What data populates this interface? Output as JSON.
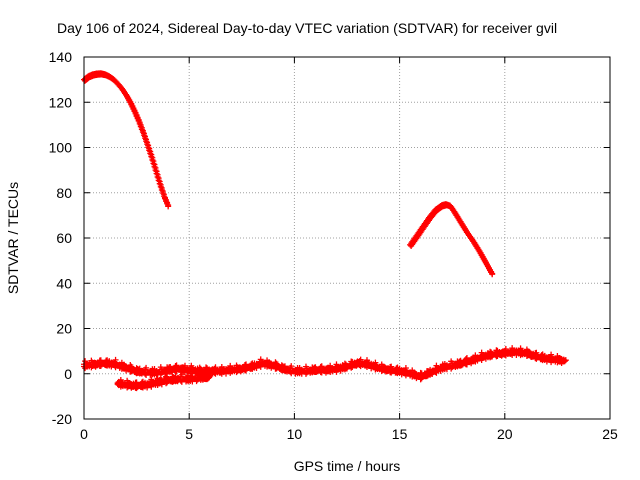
{
  "chart_data": {
    "type": "scatter",
    "title": "Day 106 of 2024, Sidereal Day-to-day VTEC variation (SDTVAR) for receiver gvil",
    "xlabel": "GPS time / hours",
    "ylabel": "SDTVAR / TECUs",
    "xlim": [
      0,
      25
    ],
    "ylim": [
      -20,
      140
    ],
    "xticks": [
      0,
      5,
      10,
      15,
      20,
      25
    ],
    "yticks": [
      -20,
      0,
      20,
      40,
      60,
      80,
      100,
      120,
      140
    ],
    "grid": true,
    "legend": "none",
    "marker": "plus",
    "color": "#ff0000",
    "series": [
      {
        "name": "high-value arc 1",
        "x": [
          0.0,
          0.2,
          0.4,
          0.6,
          0.8,
          1.0,
          1.2,
          1.4,
          1.6,
          1.8,
          2.0,
          2.2,
          2.4,
          2.6,
          2.8,
          3.0,
          3.2,
          3.4,
          3.6,
          3.8,
          4.0
        ],
        "y": [
          130,
          131.5,
          132.3,
          132.7,
          132.8,
          132.4,
          131.5,
          130.2,
          128.3,
          126.0,
          123.2,
          119.9,
          116.0,
          111.7,
          106.8,
          101.5,
          96.0,
          90.0,
          84.0,
          78.5,
          74
        ]
      },
      {
        "name": "high-value arc 2",
        "x": [
          15.5,
          15.8,
          16.1,
          16.4,
          16.7,
          17.0,
          17.2,
          17.4,
          17.6,
          17.9,
          18.2,
          18.5,
          18.8,
          19.1,
          19.4
        ],
        "y": [
          57,
          61,
          65,
          69,
          72.5,
          74.5,
          75,
          74.3,
          71.5,
          67,
          62.5,
          58.5,
          54,
          49,
          44
        ]
      },
      {
        "name": "baseline upper",
        "x": [
          0.0,
          0.5,
          1.0,
          1.5,
          2.0,
          2.5,
          3.0,
          3.5,
          4.0,
          4.5,
          5.0,
          5.5,
          6.0,
          6.5,
          7.0,
          7.5,
          8.0,
          8.5,
          9.0,
          9.5,
          10.0,
          10.5,
          11.0,
          11.5,
          12.0,
          12.5,
          13.0,
          13.5,
          14.0,
          14.5,
          15.0,
          15.5,
          16.0,
          16.5,
          17.0,
          17.5,
          18.0,
          18.5,
          19.0,
          19.5,
          20.0,
          20.5,
          21.0,
          21.5,
          22.0,
          22.5,
          22.9
        ],
        "y": [
          4,
          4.5,
          5,
          4.5,
          3,
          1.5,
          1,
          1,
          2,
          2.5,
          2,
          1.5,
          1.5,
          1.5,
          2,
          2.5,
          3.5,
          5,
          4,
          2.5,
          1.5,
          1.5,
          2,
          2,
          2.5,
          3.5,
          5,
          4.5,
          3,
          2,
          1.5,
          0.5,
          -1,
          1,
          3,
          4,
          5,
          6.5,
          8,
          9,
          9.5,
          10,
          9.5,
          8,
          7,
          6.5,
          6
        ]
      },
      {
        "name": "baseline lower",
        "x": [
          1.6,
          2.0,
          2.5,
          3.0,
          3.5,
          4.0,
          4.5,
          5.0,
          5.5,
          6.0
        ],
        "y": [
          -4,
          -4.5,
          -5,
          -4.5,
          -3.5,
          -2.5,
          -2,
          -2,
          -1.5,
          -1
        ]
      }
    ]
  }
}
